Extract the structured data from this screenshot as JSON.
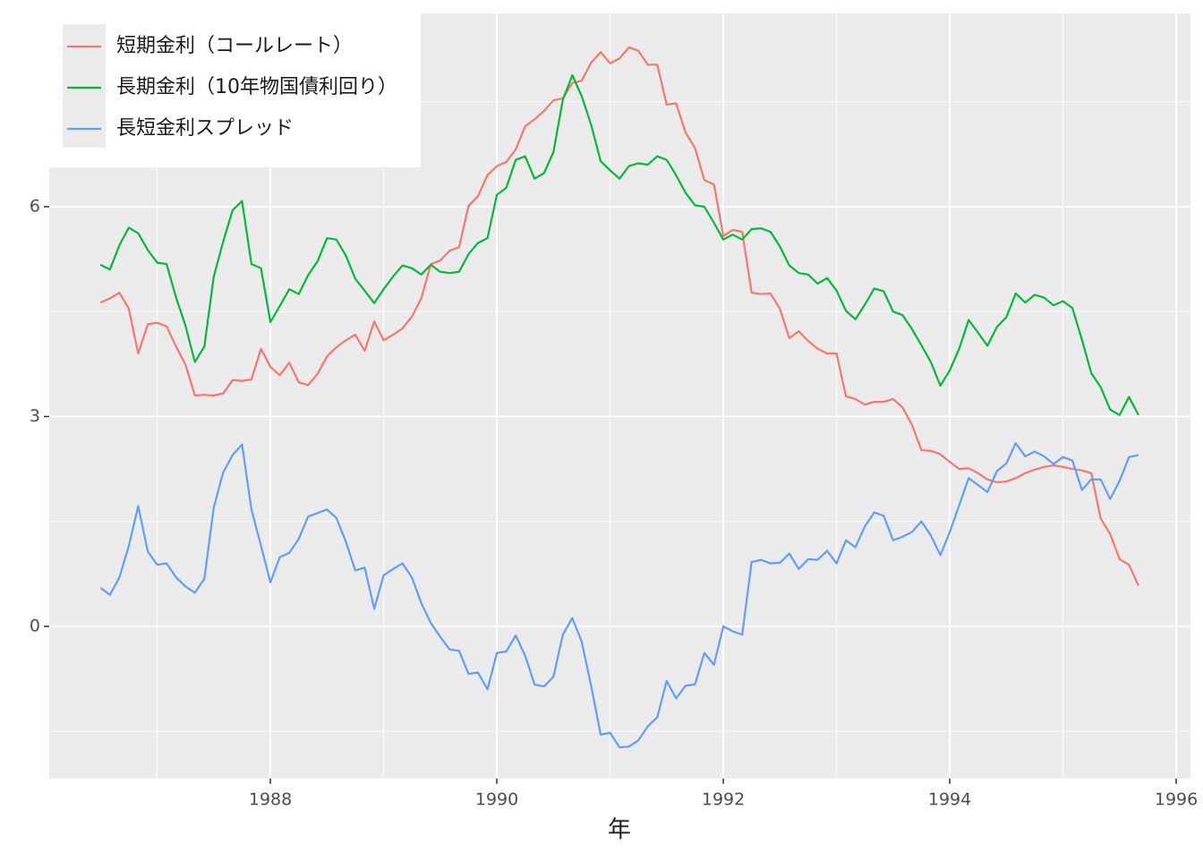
{
  "chart_data": {
    "type": "line",
    "x_label": "年",
    "x": [
      1986.5,
      1986.583,
      1986.667,
      1986.75,
      1986.833,
      1986.917,
      1987,
      1987.083,
      1987.167,
      1987.25,
      1987.333,
      1987.417,
      1987.5,
      1987.583,
      1987.667,
      1987.75,
      1987.833,
      1987.917,
      1988,
      1988.083,
      1988.167,
      1988.25,
      1988.333,
      1988.417,
      1988.5,
      1988.583,
      1988.667,
      1988.75,
      1988.833,
      1988.917,
      1989,
      1989.083,
      1989.167,
      1989.25,
      1989.333,
      1989.417,
      1989.5,
      1989.583,
      1989.667,
      1989.75,
      1989.833,
      1989.917,
      1990,
      1990.083,
      1990.167,
      1990.25,
      1990.333,
      1990.417,
      1990.5,
      1990.583,
      1990.667,
      1990.75,
      1990.833,
      1990.917,
      1991,
      1991.083,
      1991.167,
      1991.25,
      1991.333,
      1991.417,
      1991.5,
      1991.583,
      1991.667,
      1991.75,
      1991.833,
      1991.917,
      1992,
      1992.083,
      1992.167,
      1992.25,
      1992.333,
      1992.417,
      1992.5,
      1992.583,
      1992.667,
      1992.75,
      1992.833,
      1992.917,
      1993,
      1993.083,
      1993.167,
      1993.25,
      1993.333,
      1993.417,
      1993.5,
      1993.583,
      1993.667,
      1993.75,
      1993.833,
      1993.917,
      1994,
      1994.083,
      1994.167,
      1994.25,
      1994.333,
      1994.417,
      1994.5,
      1994.583,
      1994.667,
      1994.75,
      1994.833,
      1994.917,
      1995,
      1995.083,
      1995.167,
      1995.25,
      1995.333,
      1995.417,
      1995.5,
      1995.583,
      1995.667
    ],
    "series": [
      {
        "name": "短期金利（コールレート）",
        "color": "#F8766D",
        "values": [
          4.63,
          4.69,
          4.77,
          4.54,
          3.9,
          4.32,
          4.34,
          4.29,
          4.0,
          3.74,
          3.3,
          3.31,
          3.3,
          3.33,
          3.52,
          3.51,
          3.53,
          3.97,
          3.71,
          3.59,
          3.77,
          3.49,
          3.45,
          3.61,
          3.86,
          3.99,
          4.09,
          4.17,
          3.94,
          4.36,
          4.09,
          4.17,
          4.26,
          4.43,
          4.69,
          5.18,
          5.23,
          5.37,
          5.42,
          6.01,
          6.15,
          6.45,
          6.58,
          6.64,
          6.82,
          7.15,
          7.25,
          7.37,
          7.52,
          7.55,
          7.77,
          7.8,
          8.06,
          8.21,
          8.05,
          8.12,
          8.28,
          8.23,
          8.03,
          8.03,
          7.46,
          7.48,
          7.06,
          6.84,
          6.38,
          6.32,
          5.58,
          5.67,
          5.64,
          4.77,
          4.75,
          4.76,
          4.54,
          4.12,
          4.22,
          4.08,
          3.97,
          3.9,
          3.9,
          3.29,
          3.25,
          3.17,
          3.21,
          3.21,
          3.25,
          3.13,
          2.88,
          2.52,
          2.51,
          2.46,
          2.35,
          2.25,
          2.26,
          2.19,
          2.1,
          2.06,
          2.07,
          2.12,
          2.19,
          2.24,
          2.28,
          2.3,
          2.28,
          2.25,
          2.23,
          2.19,
          1.54,
          1.32,
          0.96,
          0.88,
          0.58
        ]
      },
      {
        "name": "長期金利（10年物国債利回り）",
        "color": "#00BA38",
        "values": [
          5.17,
          5.1,
          5.45,
          5.7,
          5.62,
          5.38,
          5.2,
          5.18,
          4.7,
          4.3,
          3.78,
          4.0,
          5.0,
          5.5,
          5.95,
          6.08,
          5.18,
          5.12,
          4.35,
          4.58,
          4.82,
          4.75,
          5.02,
          5.22,
          5.55,
          5.53,
          5.3,
          4.97,
          4.8,
          4.62,
          4.82,
          5.0,
          5.16,
          5.12,
          5.03,
          5.17,
          5.07,
          5.05,
          5.07,
          5.32,
          5.48,
          5.55,
          6.17,
          6.27,
          6.67,
          6.72,
          6.4,
          6.48,
          6.78,
          7.53,
          7.88,
          7.58,
          7.17,
          6.65,
          6.52,
          6.4,
          6.58,
          6.62,
          6.6,
          6.72,
          6.67,
          6.45,
          6.2,
          6.02,
          6.0,
          5.77,
          5.53,
          5.6,
          5.53,
          5.68,
          5.69,
          5.64,
          5.43,
          5.16,
          5.05,
          5.03,
          4.9,
          4.98,
          4.8,
          4.51,
          4.39,
          4.6,
          4.83,
          4.79,
          4.5,
          4.45,
          4.25,
          4.02,
          3.78,
          3.44,
          3.66,
          3.97,
          4.38,
          4.2,
          4.01,
          4.28,
          4.42,
          4.76,
          4.63,
          4.74,
          4.7,
          4.59,
          4.65,
          4.55,
          4.1,
          3.62,
          3.42,
          3.1,
          3.02,
          3.28,
          3.02
        ]
      },
      {
        "name": "長短金利スプレッド",
        "color": "#619CFF",
        "values": [
          0.55,
          0.45,
          0.7,
          1.15,
          1.72,
          1.07,
          0.88,
          0.9,
          0.7,
          0.57,
          0.48,
          0.68,
          1.7,
          2.2,
          2.45,
          2.6,
          1.67,
          1.15,
          0.63,
          0.99,
          1.05,
          1.25,
          1.57,
          1.62,
          1.67,
          1.55,
          1.21,
          0.8,
          0.84,
          0.25,
          0.73,
          0.82,
          0.9,
          0.7,
          0.33,
          0.05,
          -0.15,
          -0.33,
          -0.35,
          -0.68,
          -0.66,
          -0.9,
          -0.38,
          -0.36,
          -0.13,
          -0.42,
          -0.83,
          -0.86,
          -0.72,
          -0.12,
          0.12,
          -0.22,
          -0.85,
          -1.55,
          -1.52,
          -1.73,
          -1.72,
          -1.63,
          -1.43,
          -1.3,
          -0.78,
          -1.03,
          -0.85,
          -0.83,
          -0.38,
          -0.55,
          0.0,
          -0.07,
          -0.12,
          0.92,
          0.95,
          0.9,
          0.91,
          1.04,
          0.82,
          0.96,
          0.95,
          1.08,
          0.9,
          1.23,
          1.13,
          1.43,
          1.63,
          1.58,
          1.23,
          1.28,
          1.35,
          1.5,
          1.3,
          1.02,
          1.35,
          1.73,
          2.12,
          2.02,
          1.92,
          2.22,
          2.33,
          2.62,
          2.43,
          2.5,
          2.43,
          2.32,
          2.42,
          2.37,
          1.95,
          2.1,
          2.1,
          1.82,
          2.08,
          2.42,
          2.45
        ]
      }
    ],
    "xlim": [
      1986.047,
      1996.126
    ],
    "ylim": [
      -2.175,
      8.763
    ],
    "xticks": [
      1988,
      1990,
      1992,
      1994,
      1996
    ],
    "yticks": [
      0,
      3,
      6
    ],
    "grid": true,
    "legend_position": "top-left"
  }
}
